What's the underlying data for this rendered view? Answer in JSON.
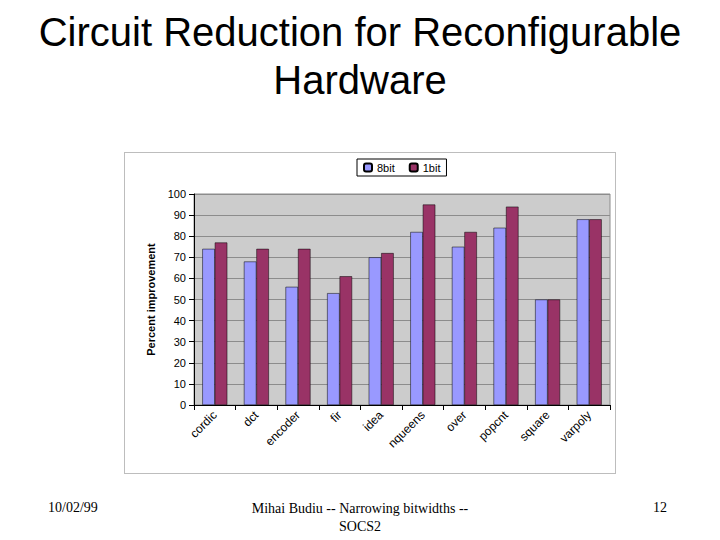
{
  "chart_data": {
    "type": "bar",
    "title": "Circuit Reduction for Reconfigurable Hardware",
    "y_label": "Percent improvement",
    "categories": [
      "cordic",
      "dct",
      "encoder",
      "fir",
      "idea",
      "nqueens",
      "over",
      "popcnt",
      "square",
      "varpoly"
    ],
    "series": [
      {
        "name": "8bit",
        "color": "#9999ff",
        "values": [
          74,
          68,
          56,
          53,
          70,
          82,
          75,
          84,
          50,
          88
        ]
      },
      {
        "name": "1bit",
        "color": "#993366",
        "values": [
          77,
          74,
          74,
          61,
          72,
          95,
          82,
          94,
          50,
          88
        ]
      }
    ],
    "ylim": [
      0,
      100
    ],
    "yticks": [
      0,
      10,
      20,
      30,
      40,
      50,
      60,
      70,
      80,
      90,
      100
    ],
    "grid": true,
    "legend": "top"
  },
  "footer": {
    "left": "10/02/99",
    "center": "Mihai Budiu -- Narrowing bitwidths -- SOCS2",
    "right": "12"
  }
}
